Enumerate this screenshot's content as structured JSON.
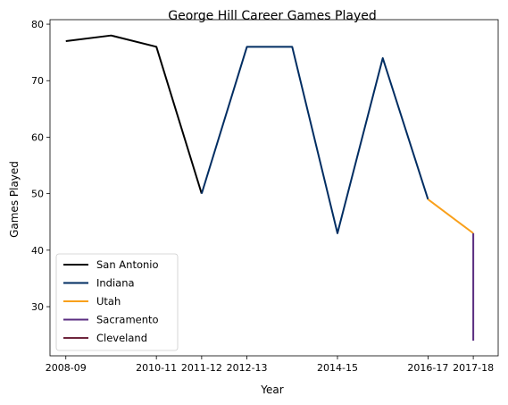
{
  "chart_data": {
    "type": "line",
    "title": "George Hill  Career Games Played",
    "xlabel": "Year",
    "ylabel": "Games Played",
    "x_categories": [
      "2008-09",
      "2009-10",
      "2010-11",
      "2011-12",
      "2012-13",
      "2013-14",
      "2014-15",
      "2015-16",
      "2016-17",
      "2017-18"
    ],
    "x_tick_labels": [
      "2008-09",
      "2010-11",
      "2011-12",
      "2012-13",
      "2014-15",
      "2016-17",
      "2017-18"
    ],
    "y_ticks": [
      30,
      40,
      50,
      60,
      70,
      80
    ],
    "ylim": [
      21.3,
      80.8
    ],
    "grid": false,
    "legend_position": "lower-left",
    "series": [
      {
        "name": "San Antonio",
        "color": "#000000",
        "points": [
          [
            0,
            77
          ],
          [
            1,
            78
          ],
          [
            2,
            76
          ],
          [
            3,
            50
          ]
        ]
      },
      {
        "name": "Indiana",
        "color": "#002D62",
        "points": [
          [
            3,
            50
          ],
          [
            4,
            76
          ],
          [
            5,
            76
          ],
          [
            6,
            43
          ],
          [
            7,
            74
          ],
          [
            8,
            49
          ]
        ]
      },
      {
        "name": "Utah",
        "color": "#F9A01B",
        "points": [
          [
            8,
            49
          ],
          [
            9,
            43
          ]
        ]
      },
      {
        "name": "Sacramento",
        "color": "#5A2D81",
        "points": [
          [
            9,
            43
          ],
          [
            9,
            24
          ]
        ]
      },
      {
        "name": "Cleveland",
        "color": "#6F263D",
        "points": []
      }
    ]
  }
}
